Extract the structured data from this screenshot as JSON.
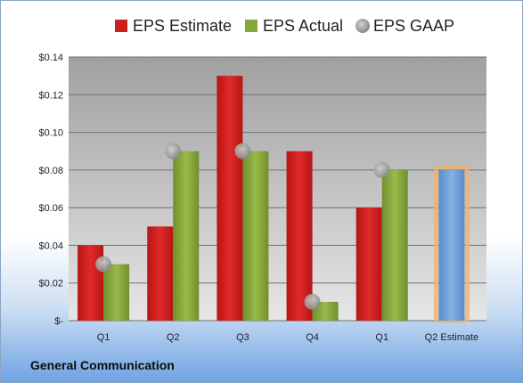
{
  "chart_data": {
    "type": "bar",
    "categories": [
      "Q1",
      "Q2",
      "Q3",
      "Q4",
      "Q1",
      "Q2 Estimate"
    ],
    "series": [
      {
        "name": "EPS Estimate",
        "type": "bar",
        "color": "#cc1f1f",
        "values": [
          0.04,
          0.05,
          0.13,
          0.09,
          0.06,
          null
        ]
      },
      {
        "name": "EPS Actual",
        "type": "bar",
        "color": "#86a83a",
        "values": [
          0.03,
          0.09,
          0.09,
          0.01,
          0.08,
          null
        ]
      },
      {
        "name": "EPS GAAP",
        "type": "marker",
        "color": "#a6a6a6",
        "values": [
          0.03,
          0.09,
          0.09,
          0.01,
          0.08,
          null
        ]
      },
      {
        "name": "Q2 Estimate",
        "type": "bar",
        "color": "#6e9fd6",
        "highlight": "#f0b36a",
        "values": [
          null,
          null,
          null,
          null,
          null,
          0.08
        ]
      }
    ],
    "yticks": [
      "$-",
      "$0.02",
      "$0.04",
      "$0.06",
      "$0.08",
      "$0.10",
      "$0.12",
      "$0.14"
    ],
    "ylim": [
      0,
      0.14
    ],
    "grid": true,
    "legend": "top"
  },
  "footer": {
    "label": "General Communication"
  }
}
